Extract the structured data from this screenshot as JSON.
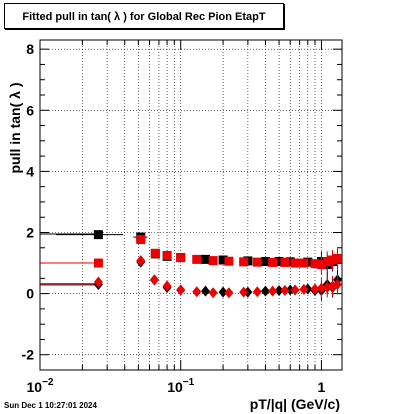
{
  "title": "Fitted pull in tan( λ ) for Global Rec Pion EtapT",
  "timestamp": "Sun Dec  1 10:27:01 2024",
  "chart_data": {
    "type": "scatter",
    "xlabel": "pT/|q| (GeV/c)",
    "ylabel": "pull in tan( λ )",
    "xscale": "log",
    "xlim": [
      0.01,
      1.4
    ],
    "ylim": [
      -2.5,
      8.3
    ],
    "grid": true,
    "y_ticks": [
      -2,
      0,
      2,
      4,
      6,
      8
    ],
    "x_tick_labels": [
      {
        "value": 0.01,
        "base": "10",
        "exp": "−2"
      },
      {
        "value": 0.1,
        "base": "10",
        "exp": "−1"
      },
      {
        "value": 1,
        "base": "1",
        "exp": ""
      }
    ],
    "series": [
      {
        "marker": "square",
        "color": "#000000",
        "points": [
          [
            0.026,
            1.93
          ],
          [
            0.052,
            1.85
          ],
          [
            0.066,
            1.3
          ],
          [
            0.08,
            1.22
          ],
          [
            0.1,
            1.18
          ],
          [
            0.15,
            1.12
          ],
          [
            0.2,
            1.1
          ],
          [
            0.3,
            1.07
          ],
          [
            0.4,
            1.05
          ],
          [
            0.5,
            1.05
          ],
          [
            0.6,
            1.04
          ],
          [
            0.8,
            1.03
          ],
          [
            1.0,
            1.05
          ],
          [
            1.1,
            0.95
          ],
          [
            1.2,
            1.05
          ],
          [
            1.3,
            1.12
          ]
        ],
        "xerr_low": [
          [
            0.013,
            0.039
          ],
          [
            0.046,
            0.058
          ]
        ]
      },
      {
        "marker": "diamond",
        "color": "#000000",
        "points": [
          [
            0.026,
            0.3
          ],
          [
            0.052,
            1.03
          ],
          [
            0.065,
            0.45
          ],
          [
            0.08,
            0.2
          ],
          [
            0.1,
            0.12
          ],
          [
            0.15,
            0.08
          ],
          [
            0.2,
            0.05
          ],
          [
            0.3,
            0.05
          ],
          [
            0.4,
            0.08
          ],
          [
            0.5,
            0.1
          ],
          [
            0.6,
            0.12
          ],
          [
            0.8,
            0.15
          ],
          [
            0.9,
            0.1
          ],
          [
            1.0,
            0.1
          ],
          [
            1.1,
            0.3
          ],
          [
            1.2,
            0.2
          ],
          [
            1.3,
            0.45
          ]
        ]
      },
      {
        "marker": "square",
        "color": "#ee0000",
        "points": [
          [
            0.026,
            1.0
          ],
          [
            0.052,
            1.77
          ],
          [
            0.066,
            1.32
          ],
          [
            0.08,
            1.25
          ],
          [
            0.1,
            1.18
          ],
          [
            0.13,
            1.12
          ],
          [
            0.17,
            1.08
          ],
          [
            0.22,
            1.06
          ],
          [
            0.28,
            1.04
          ],
          [
            0.35,
            1.03
          ],
          [
            0.45,
            1.02
          ],
          [
            0.55,
            1.02
          ],
          [
            0.65,
            1.0
          ],
          [
            0.75,
            1.0
          ],
          [
            0.9,
            0.98
          ],
          [
            1.0,
            0.95
          ],
          [
            1.1,
            1.05
          ],
          [
            1.2,
            1.1
          ],
          [
            1.3,
            1.15
          ]
        ]
      },
      {
        "marker": "diamond",
        "color": "#ee0000",
        "points": [
          [
            0.026,
            0.38
          ],
          [
            0.052,
            1.08
          ],
          [
            0.065,
            0.45
          ],
          [
            0.08,
            0.25
          ],
          [
            0.1,
            0.12
          ],
          [
            0.13,
            0.06
          ],
          [
            0.17,
            0.03
          ],
          [
            0.22,
            0.03
          ],
          [
            0.28,
            0.05
          ],
          [
            0.35,
            0.06
          ],
          [
            0.45,
            0.08
          ],
          [
            0.55,
            0.1
          ],
          [
            0.65,
            0.12
          ],
          [
            0.75,
            0.14
          ],
          [
            0.9,
            0.15
          ],
          [
            1.0,
            0.18
          ],
          [
            1.1,
            0.2
          ],
          [
            1.2,
            0.25
          ],
          [
            1.3,
            0.3
          ]
        ]
      }
    ],
    "hlines": [
      {
        "y": 1.95,
        "x": [
          0.01,
          0.026
        ],
        "color": "#000000"
      },
      {
        "y": 1.0,
        "x": [
          0.01,
          0.026
        ],
        "color": "#ee0000"
      },
      {
        "y": 0.32,
        "x": [
          0.01,
          0.026
        ],
        "color": "#000000"
      },
      {
        "y": 0.28,
        "x": [
          0.01,
          0.026
        ],
        "color": "#ee0000"
      }
    ]
  }
}
